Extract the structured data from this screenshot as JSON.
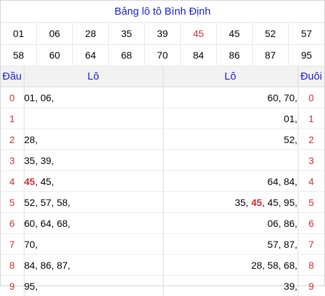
{
  "title": "Bảng lô tô Bình Định",
  "numbers": [
    [
      "01",
      "06",
      "28",
      "35",
      "39",
      "45",
      "45",
      "52",
      "57"
    ],
    [
      "58",
      "60",
      "64",
      "68",
      "70",
      "84",
      "86",
      "87",
      "95"
    ]
  ],
  "highlight_color": "#d32f2f",
  "title_color": "#1b1bd6",
  "headers": {
    "dau": "Đầu",
    "lo_left": "Lô",
    "lo_right": "Lô",
    "duoi": "Đuôi"
  },
  "rows": [
    {
      "dau": "0",
      "left": [
        "01, 06,",
        ""
      ],
      "right": [
        "60, 70,",
        ""
      ],
      "duoi": "0"
    },
    {
      "dau": "1",
      "left": [
        "",
        ""
      ],
      "right": [
        "01,",
        ""
      ],
      "duoi": "1"
    },
    {
      "dau": "2",
      "left": [
        "28,",
        ""
      ],
      "right": [
        "52,",
        ""
      ],
      "duoi": "2"
    },
    {
      "dau": "3",
      "left": [
        "35, 39,",
        ""
      ],
      "right": [
        "",
        ""
      ],
      "duoi": "3"
    },
    {
      "dau": "4",
      "left_hl": "45",
      "left_rest": ", 45,",
      "right": [
        "64, 84,",
        ""
      ],
      "duoi": "4"
    },
    {
      "dau": "5",
      "left": [
        "52, 57, 58,",
        ""
      ],
      "right_pre": "35, ",
      "right_hl": "45",
      "right_post": ", 45, 95,",
      "duoi": "5"
    },
    {
      "dau": "6",
      "left": [
        "60, 64, 68,",
        ""
      ],
      "right": [
        "06, 86,",
        ""
      ],
      "duoi": "6"
    },
    {
      "dau": "7",
      "left": [
        "70,",
        ""
      ],
      "right": [
        "57, 87,",
        ""
      ],
      "duoi": "7"
    },
    {
      "dau": "8",
      "left": [
        "84, 86, 87,",
        ""
      ],
      "right": [
        "28, 58, 68,",
        ""
      ],
      "duoi": "8"
    },
    {
      "dau": "9",
      "left": [
        "95,",
        ""
      ],
      "right": [
        "39,",
        ""
      ],
      "duoi": "9"
    }
  ]
}
